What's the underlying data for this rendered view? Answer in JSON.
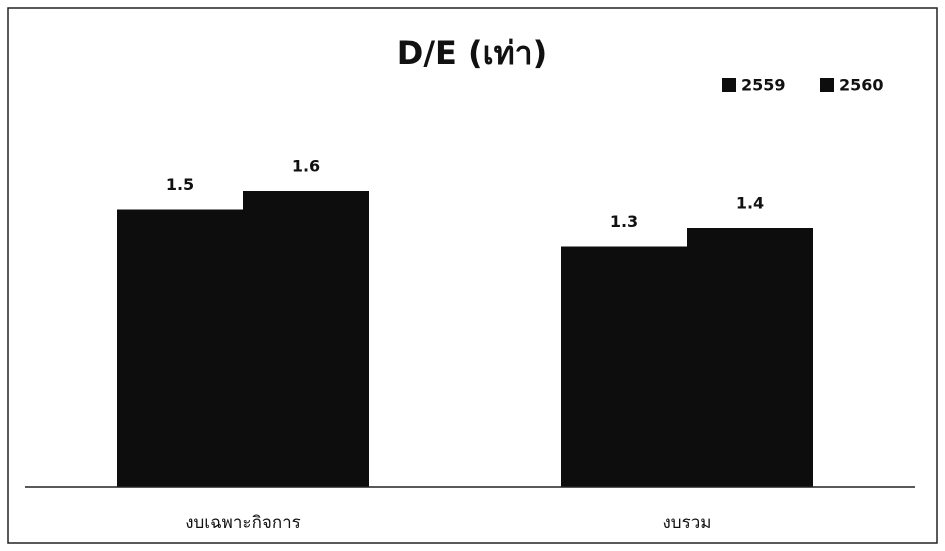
{
  "chart_data": {
    "type": "bar",
    "title": "D/E (เท่า)",
    "categories": [
      "งบเฉพาะกิจการ",
      "งบรวม"
    ],
    "series": [
      {
        "name": "2559",
        "color": "#0d0d0d",
        "values": [
          1.5,
          1.3
        ]
      },
      {
        "name": "2560",
        "color": "#0d0d0d",
        "values": [
          1.6,
          1.4
        ]
      }
    ],
    "ylim": [
      0,
      1.8
    ],
    "legend": "top-right"
  }
}
